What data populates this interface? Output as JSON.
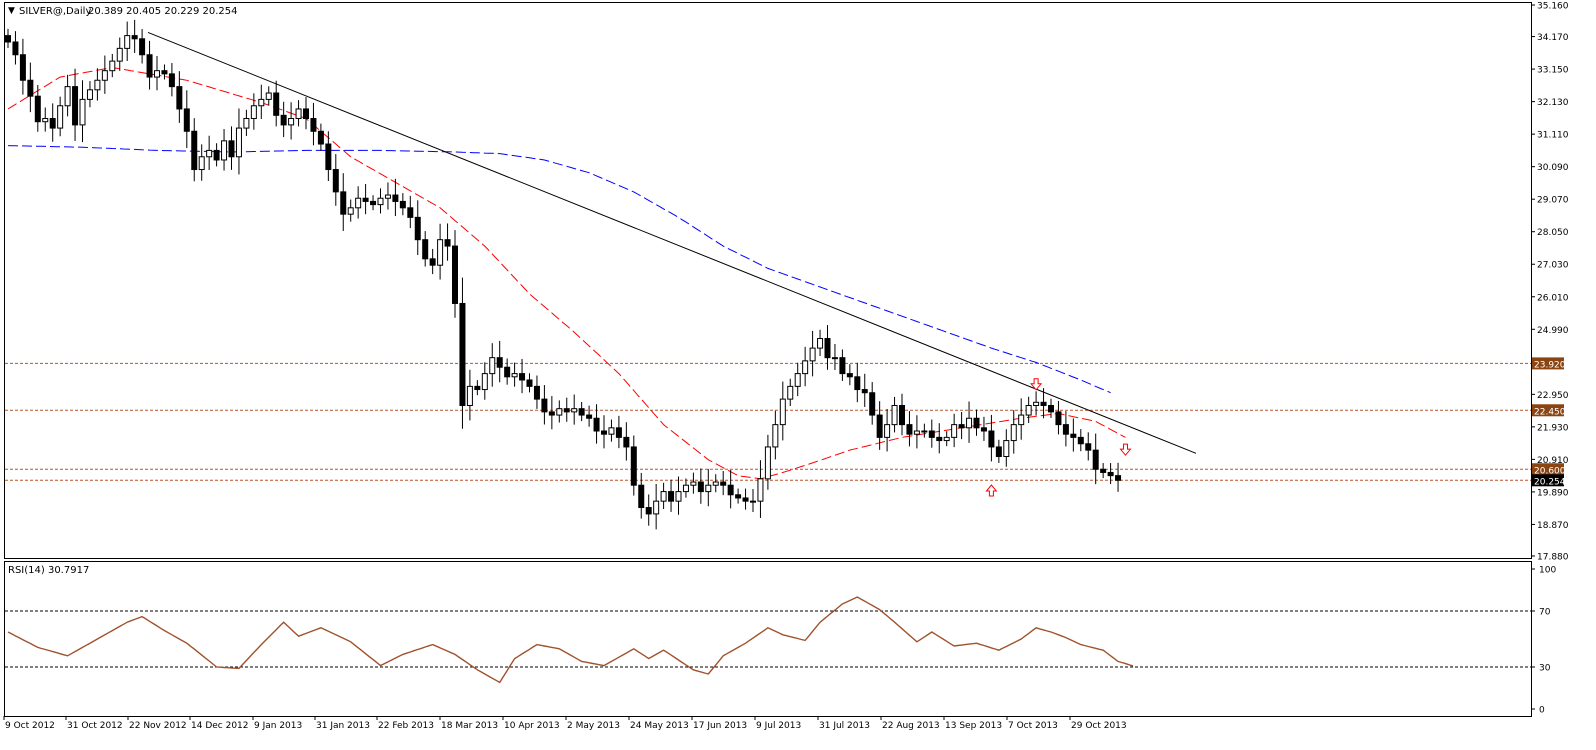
{
  "header": {
    "symbol_label": "SILVER@,Daily",
    "ohlc_label": "20.389 20.405 20.229 20.254"
  },
  "rsi_panel": {
    "label": "RSI(14) 30.7917",
    "levels": [
      70,
      30
    ],
    "ticks": [
      "100",
      "70",
      "30",
      "0"
    ],
    "color": "#a0522d"
  },
  "colors": {
    "candles": "#000000",
    "ma_fast": "#ff0000",
    "ma_slow": "#0000ff",
    "trendline": "#000000",
    "level_line": "#b5562a",
    "level_box": "#8b4513",
    "current_box": "#000000",
    "arrow": "#ff0000"
  },
  "chart_data": {
    "type": "candlestick",
    "price_axis": {
      "ticks": [
        "35.160",
        "34.170",
        "33.150",
        "32.130",
        "31.110",
        "30.090",
        "29.070",
        "28.050",
        "27.030",
        "26.010",
        "24.990",
        "22.950",
        "21.930",
        "20.910",
        "19.890",
        "18.870",
        "17.880"
      ],
      "ylim": [
        17.88,
        35.16
      ]
    },
    "date_axis": {
      "labels": [
        "9 Oct 2012",
        "31 Oct 2012",
        "22 Nov 2012",
        "14 Dec 2012",
        "9 Jan 2013",
        "31 Jan 2013",
        "22 Feb 2013",
        "18 Mar 2013",
        "10 Apr 2013",
        "2 May 2013",
        "24 May 2013",
        "17 Jun 2013",
        "9 Jul 2013",
        "31 Jul 2013",
        "22 Aug 2013",
        "13 Sep 2013",
        "7 Oct 2013",
        "29 Oct 2013"
      ]
    },
    "horizontal_levels": [
      {
        "value": 23.92,
        "label": "23.920"
      },
      {
        "value": 22.45,
        "label": "22.450"
      },
      {
        "value": 20.6,
        "label": "20.600"
      }
    ],
    "current_price": {
      "value": 20.254,
      "label": "20.254"
    },
    "trendline": {
      "from": {
        "date": "22 Nov 2012",
        "price": 34.3
      },
      "to": {
        "date": "Nov 2013",
        "price": 21.1
      }
    },
    "closes": [
      34.0,
      33.6,
      32.8,
      32.3,
      31.5,
      31.6,
      31.3,
      32.0,
      32.6,
      31.4,
      32.2,
      32.5,
      32.8,
      33.1,
      33.4,
      33.8,
      34.2,
      34.1,
      33.6,
      32.9,
      33.1,
      33.0,
      32.6,
      31.9,
      31.2,
      30.0,
      30.4,
      30.6,
      30.3,
      30.9,
      30.4,
      31.3,
      31.6,
      32.0,
      32.2,
      32.4,
      31.7,
      31.4,
      31.6,
      31.9,
      31.6,
      31.2,
      30.8,
      30.0,
      29.3,
      28.6,
      28.8,
      29.1,
      29.0,
      28.9,
      29.1,
      29.2,
      29.0,
      28.8,
      28.5,
      27.8,
      27.2,
      27.0,
      27.8,
      27.6,
      25.8,
      22.6,
      23.2,
      23.1,
      23.6,
      24.1,
      23.8,
      23.5,
      23.6,
      23.4,
      23.2,
      22.8,
      22.4,
      22.3,
      22.5,
      22.4,
      22.5,
      22.3,
      22.2,
      21.8,
      21.7,
      21.9,
      21.6,
      21.3,
      20.1,
      19.4,
      19.2,
      19.6,
      19.9,
      19.6,
      19.9,
      20.1,
      20.2,
      19.9,
      20.1,
      20.2,
      20.1,
      19.8,
      19.7,
      19.6,
      19.6,
      20.3,
      21.3,
      22.0,
      22.8,
      23.2,
      23.6,
      24.0,
      24.4,
      24.7,
      24.1,
      24.1,
      23.6,
      23.5,
      23.1,
      23.0,
      22.3,
      21.6,
      22.0,
      22.6,
      22.0,
      21.7,
      21.8,
      21.8,
      21.6,
      21.5,
      21.6,
      22.0,
      21.9,
      22.2,
      21.9,
      21.8,
      21.3,
      21.0,
      21.5,
      22.0,
      22.3,
      22.6,
      22.7,
      22.6,
      22.4,
      22.0,
      21.7,
      21.6,
      21.4,
      21.2,
      20.6,
      20.5,
      20.4,
      20.254
    ],
    "ma_fast_keypoints": [
      [
        0,
        31.9
      ],
      [
        7,
        32.9
      ],
      [
        14,
        33.2
      ],
      [
        24,
        32.8
      ],
      [
        34,
        32.1
      ],
      [
        40,
        31.6
      ],
      [
        46,
        30.4
      ],
      [
        52,
        29.6
      ],
      [
        58,
        28.8
      ],
      [
        64,
        27.6
      ],
      [
        70,
        26.1
      ],
      [
        76,
        24.9
      ],
      [
        82,
        23.6
      ],
      [
        88,
        22.0
      ],
      [
        94,
        20.9
      ],
      [
        98,
        20.4
      ],
      [
        101,
        20.3
      ],
      [
        104,
        20.5
      ],
      [
        108,
        20.8
      ],
      [
        113,
        21.2
      ],
      [
        120,
        21.6
      ],
      [
        128,
        21.9
      ],
      [
        136,
        22.2
      ],
      [
        141,
        22.35
      ],
      [
        146,
        22.1
      ],
      [
        150,
        21.6
      ]
    ],
    "ma_slow_keypoints": [
      [
        0,
        30.75
      ],
      [
        10,
        30.7
      ],
      [
        20,
        30.6
      ],
      [
        30,
        30.55
      ],
      [
        40,
        30.6
      ],
      [
        50,
        30.6
      ],
      [
        60,
        30.55
      ],
      [
        66,
        30.5
      ],
      [
        72,
        30.3
      ],
      [
        78,
        29.9
      ],
      [
        84,
        29.3
      ],
      [
        90,
        28.5
      ],
      [
        96,
        27.6
      ],
      [
        102,
        26.9
      ],
      [
        108,
        26.4
      ],
      [
        114,
        25.9
      ],
      [
        120,
        25.4
      ],
      [
        126,
        24.9
      ],
      [
        132,
        24.4
      ],
      [
        138,
        23.95
      ],
      [
        144,
        23.4
      ],
      [
        148,
        23.0
      ]
    ],
    "rsi": {
      "series_keypoints": [
        [
          0,
          55
        ],
        [
          4,
          44
        ],
        [
          8,
          38
        ],
        [
          12,
          50
        ],
        [
          16,
          62
        ],
        [
          18,
          66
        ],
        [
          21,
          56
        ],
        [
          24,
          47
        ],
        [
          28,
          30
        ],
        [
          31,
          29
        ],
        [
          34,
          46
        ],
        [
          37,
          62
        ],
        [
          39,
          52
        ],
        [
          42,
          58
        ],
        [
          46,
          48
        ],
        [
          50,
          31
        ],
        [
          53,
          39
        ],
        [
          57,
          46
        ],
        [
          60,
          39
        ],
        [
          63,
          28
        ],
        [
          66,
          19
        ],
        [
          68,
          36
        ],
        [
          71,
          46
        ],
        [
          74,
          43
        ],
        [
          77,
          34
        ],
        [
          80,
          31
        ],
        [
          84,
          43
        ],
        [
          86,
          36
        ],
        [
          88,
          42
        ],
        [
          92,
          28
        ],
        [
          94,
          25
        ],
        [
          96,
          38
        ],
        [
          99,
          47
        ],
        [
          102,
          58
        ],
        [
          104,
          53
        ],
        [
          107,
          49
        ],
        [
          109,
          62
        ],
        [
          112,
          75
        ],
        [
          114,
          80
        ],
        [
          117,
          71
        ],
        [
          119,
          62
        ],
        [
          122,
          48
        ],
        [
          124,
          55
        ],
        [
          127,
          45
        ],
        [
          130,
          47
        ],
        [
          133,
          42
        ],
        [
          136,
          50
        ],
        [
          138,
          58
        ],
        [
          140,
          55
        ],
        [
          142,
          51
        ],
        [
          144,
          46
        ],
        [
          147,
          42
        ],
        [
          149,
          34
        ],
        [
          151,
          30.79
        ]
      ]
    },
    "arrows": [
      {
        "direction": "down",
        "price": 23.25,
        "index": 138
      },
      {
        "direction": "up",
        "price": 19.95,
        "index": 132
      },
      {
        "direction": "down",
        "price": 21.2,
        "index": 150
      }
    ]
  }
}
